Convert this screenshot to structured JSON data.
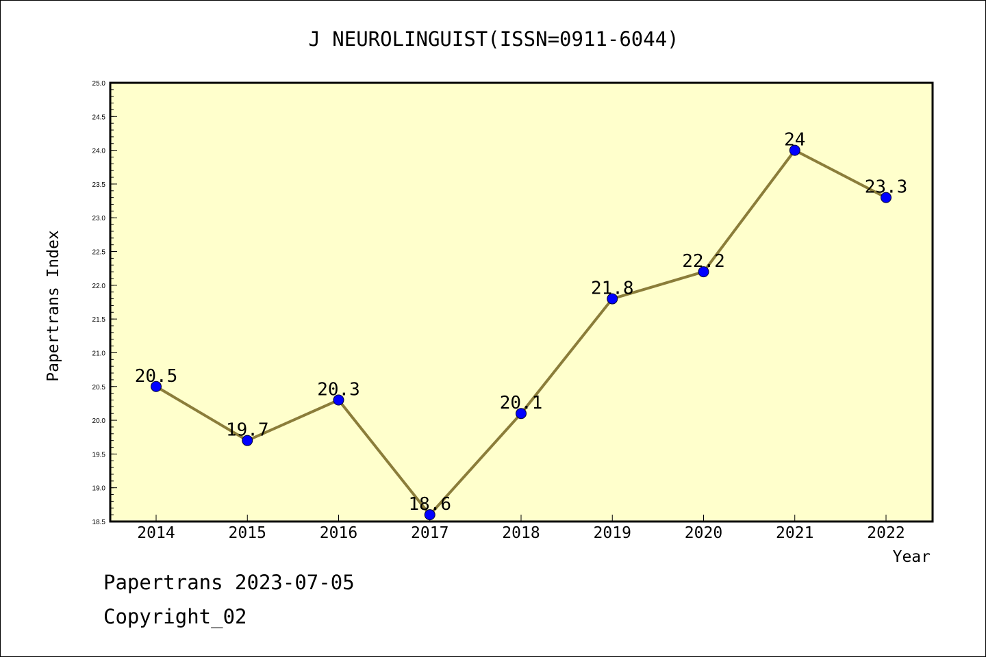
{
  "chart_data": {
    "type": "line",
    "title": "J NEUROLINGUIST(ISSN=0911-6044)",
    "xlabel": "Year",
    "ylabel": "Papertrans Index",
    "categories": [
      "2014",
      "2015",
      "2016",
      "2017",
      "2018",
      "2019",
      "2020",
      "2021",
      "2022"
    ],
    "series": [
      {
        "values": [
          20.5,
          19.7,
          20.3,
          18.6,
          20.1,
          21.8,
          22.2,
          24,
          23.3
        ],
        "data_labels": [
          "20.5",
          "19.7",
          "20.3",
          "18.6",
          "20.1",
          "21.8",
          "22.2",
          "24",
          "23.3"
        ]
      }
    ],
    "ylim": [
      18.5,
      25.0
    ],
    "yticks": [
      "18.5",
      "19.0",
      "19.5",
      "20.0",
      "20.5",
      "21.0",
      "21.5",
      "22.0",
      "22.5",
      "23.0",
      "23.5",
      "24.0",
      "24.5",
      "25.0"
    ],
    "grid": false,
    "colors": {
      "line": "#8B7D3A",
      "marker": "#0000FF",
      "plot_background": "#FFFFCC"
    }
  },
  "footer": {
    "line1": "Papertrans 2023-07-05",
    "line2": "Copyright_02"
  }
}
